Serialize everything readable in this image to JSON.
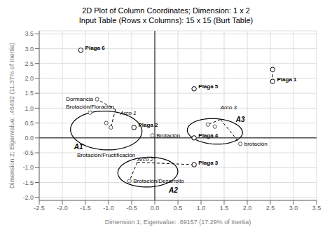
{
  "chart_data": {
    "type": "scatter",
    "title": "2D Plot of Column Coordinates; Dimension: 1 x 2",
    "subtitle": "Input Table (Rows x Columns): 15 x 15 (Burt Table)",
    "x_label": "Dimension 1; Eigenvalue: .69157 (17.29% of Inertia)",
    "y_label": "Dimension 2; Eigenvalue: .45492 (11.37% of Inertia)",
    "xlim": [
      -2.5,
      3.5
    ],
    "ylim": [
      -2.1,
      3.6
    ],
    "xticks": [
      -2.5,
      {
        "value": -2,
        "label": "-2.0"
      },
      -1.5,
      {
        "value": -1,
        "label": "-1.0"
      },
      -0.5,
      {
        "value": 0,
        "label": "0.0"
      },
      0.5,
      {
        "value": 1,
        "label": "1.0"
      },
      1.5,
      {
        "value": 2,
        "label": "2.0"
      },
      2.5,
      {
        "value": 3,
        "label": "3.0"
      },
      3.5
    ],
    "yticks": [
      {
        "value": -2,
        "label": "-2.0"
      },
      -1.5,
      {
        "value": -1,
        "label": "-1.0"
      },
      -0.5,
      {
        "value": 0,
        "label": "0.0"
      },
      0.5,
      {
        "value": 1,
        "label": "1.0"
      },
      1.5,
      {
        "value": 2,
        "label": "2.0"
      },
      2.5,
      {
        "value": 3,
        "label": "3.0"
      },
      3.5
    ],
    "grid": true,
    "series": [
      {
        "color": "#000000",
        "x": [
          2.55,
          0.85,
          -1.6,
          -0.45,
          0.85,
          0.85,
          2.55
        ],
        "values": [
          1.9,
          1.65,
          2.95,
          0.35,
          0.0,
          -0.9,
          2.3
        ],
        "labels": [
          "Plaga 1",
          "Plaga 5",
          "Plaga 6",
          "Plaga 2",
          "Plaga 4",
          "Plaga 3",
          null
        ]
      },
      {
        "color": "#555555",
        "x": [
          -1.25,
          -1.4,
          -1.05,
          -0.95,
          -0.05,
          -0.55,
          1.85,
          1.15,
          1.3
        ],
        "values": [
          1.3,
          0.85,
          0.5,
          0.35,
          0.08,
          -1.45,
          -0.2,
          0.45,
          0.38
        ],
        "labels": [
          "Dormancia",
          "Brotación/Floración",
          null,
          null,
          "Brotación",
          "Brotación/Desarrollo",
          "brotación",
          null,
          null
        ]
      }
    ],
    "annotations": [
      {
        "text": "Brotación/Fructificación",
        "x": -1.05,
        "y": -0.5
      }
    ],
    "arc_labels": [
      {
        "text": "Arco 1",
        "x": -0.75,
        "y": 0.72
      },
      {
        "text": "Arco 2",
        "x": -0.38,
        "y": -0.82
      },
      {
        "text": "Arco 3",
        "x": 1.42,
        "y": 0.92
      }
    ],
    "ellipses": [
      {
        "cx": -1.05,
        "cy": 0.25,
        "width": 1.55,
        "height": 1.3,
        "angle": -8,
        "label": "A1",
        "label_x": -1.65,
        "label_y": -0.3
      },
      {
        "cx": -0.15,
        "cy": -1.15,
        "width": 1.3,
        "height": 1.0,
        "angle": 5,
        "label": "A2",
        "label_x": 0.4,
        "label_y": -1.75
      },
      {
        "cx": 1.3,
        "cy": 0.22,
        "width": 1.2,
        "height": 0.85,
        "angle": -8,
        "label": "A3",
        "label_x": 1.85,
        "label_y": 0.62
      }
    ],
    "segments": [
      {
        "x1": -0.85,
        "y1": 0.95,
        "x2": -1.25,
        "y2": 1.3
      },
      {
        "x1": -0.85,
        "y1": 0.95,
        "x2": -0.95,
        "y2": 0.35
      },
      {
        "x1": -0.38,
        "y1": -0.82,
        "x2": -0.55,
        "y2": -1.45
      },
      {
        "x1": -0.38,
        "y1": -0.82,
        "x2": 0.85,
        "y2": -0.9
      },
      {
        "x1": 1.42,
        "y1": 0.62,
        "x2": 1.85,
        "y2": -0.2
      },
      {
        "x1": 1.42,
        "y1": 0.62,
        "x2": 1.15,
        "y2": 0.45
      },
      {
        "x1": 2.55,
        "y1": 2.3,
        "x2": 2.55,
        "y2": 1.9
      }
    ],
    "reference_lines": {
      "x": [
        0
      ],
      "y": [
        0
      ]
    }
  }
}
